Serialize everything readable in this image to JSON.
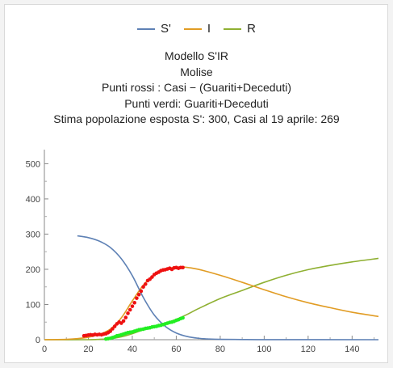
{
  "chart_data": {
    "type": "line",
    "title_lines": [
      "Modello S'IR",
      "Molise",
      "Punti rossi : Casi − (Guariti+Deceduti)",
      "Punti verdi: Guariti+Deceduti",
      "Stima popolazione esposta S': 300, Casi al 19 aprile: 269"
    ],
    "xlim": [
      0,
      152
    ],
    "ylim": [
      0,
      540
    ],
    "x_ticks": [
      0,
      20,
      40,
      60,
      80,
      100,
      120,
      140
    ],
    "y_ticks": [
      0,
      100,
      200,
      300,
      400,
      500
    ],
    "legend_position": "top-center",
    "series": [
      {
        "name": "S'",
        "color": "#5e81b5",
        "x": [
          15,
          20,
          25,
          30,
          35,
          40,
          45,
          50,
          55,
          60,
          65,
          70,
          75,
          80,
          90,
          100,
          152
        ],
        "y": [
          295,
          290,
          280,
          262,
          230,
          182,
          120,
          70,
          38,
          19,
          9,
          4,
          2,
          1,
          0.5,
          0.2,
          0
        ]
      },
      {
        "name": "I",
        "color": "#e19c24",
        "x": [
          0,
          10,
          15,
          20,
          25,
          30,
          35,
          40,
          45,
          50,
          55,
          60,
          64,
          70,
          80,
          90,
          100,
          110,
          120,
          130,
          140,
          152
        ],
        "y": [
          0,
          1,
          3,
          7,
          15,
          30,
          62,
          110,
          155,
          185,
          200,
          206,
          206,
          200,
          183,
          163,
          142,
          122,
          105,
          91,
          78,
          66
        ]
      },
      {
        "name": "R",
        "color": "#8fb032",
        "x": [
          0,
          20,
          25,
          30,
          35,
          40,
          45,
          50,
          55,
          60,
          65,
          70,
          80,
          90,
          100,
          110,
          120,
          130,
          140,
          152
        ],
        "y": [
          0,
          0,
          1,
          3,
          8,
          17,
          28,
          38,
          47,
          58,
          72,
          88,
          117,
          140,
          163,
          183,
          199,
          211,
          221,
          231
        ]
      }
    ],
    "scatter": [
      {
        "color": "#ee1111",
        "x": [
          18,
          19,
          20,
          21,
          22,
          23,
          24,
          25,
          26,
          27,
          28,
          29,
          30,
          31,
          32,
          33,
          34,
          35,
          36,
          37,
          38,
          39,
          40,
          41,
          42,
          43,
          44,
          45,
          46,
          47,
          48,
          49,
          50,
          51,
          52,
          53,
          54,
          55,
          56,
          57,
          58,
          59,
          60,
          61,
          62,
          63
        ],
        "y": [
          11,
          12,
          13,
          14,
          13,
          15,
          14,
          15,
          14,
          16,
          17,
          20,
          24,
          31,
          38,
          45,
          50,
          47,
          53,
          63,
          75,
          85,
          95,
          105,
          118,
          128,
          138,
          150,
          158,
          168,
          172,
          178,
          185,
          189,
          192,
          196,
          198,
          199,
          201,
          203,
          200,
          204,
          205,
          203,
          205,
          205
        ]
      },
      {
        "color": "#22ee22",
        "x": [
          28,
          29,
          30,
          31,
          32,
          33,
          34,
          35,
          36,
          37,
          38,
          39,
          40,
          41,
          42,
          43,
          44,
          45,
          46,
          47,
          48,
          49,
          50,
          51,
          52,
          53,
          54,
          55,
          56,
          57,
          58,
          59,
          60,
          61,
          62,
          63
        ],
        "y": [
          2,
          3,
          4,
          6,
          8,
          11,
          12,
          14,
          16,
          18,
          20,
          21,
          22,
          24,
          26,
          28,
          29,
          30,
          32,
          33,
          34,
          36,
          37,
          38,
          40,
          41,
          43,
          45,
          47,
          49,
          50,
          52,
          55,
          57,
          60,
          62
        ]
      }
    ]
  }
}
